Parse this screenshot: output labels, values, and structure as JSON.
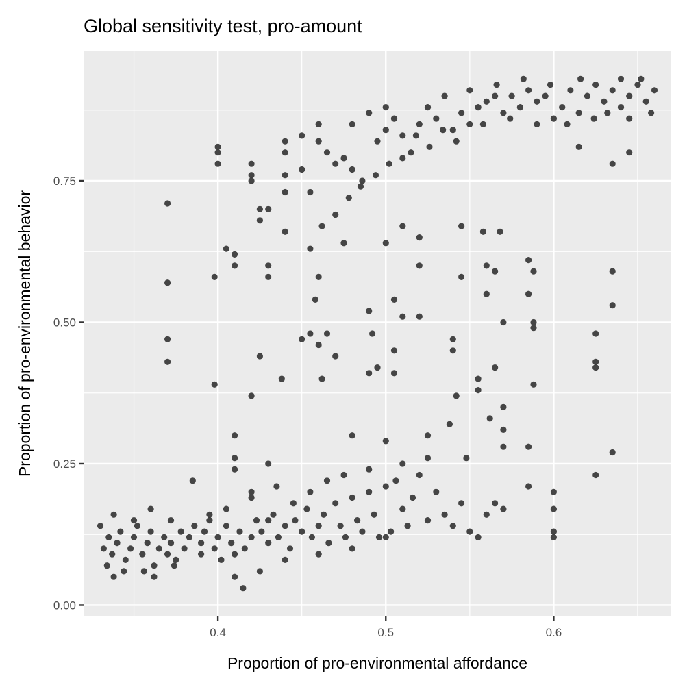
{
  "chart_data": {
    "type": "scatter",
    "title": "Global sensitivity test, pro-amount",
    "xlabel": "Proportion of pro-environmental affordance",
    "ylabel": "Proportion of pro-environmental behavior",
    "xlim": [
      0.32,
      0.67
    ],
    "ylim": [
      -0.02,
      0.98
    ],
    "x_ticks": [
      0.4,
      0.5,
      0.6
    ],
    "x_tick_labels": [
      "0.4",
      "0.5",
      "0.6"
    ],
    "y_ticks": [
      0.0,
      0.25,
      0.5,
      0.75
    ],
    "y_tick_labels": [
      "0.00",
      "0.25",
      "0.50",
      "0.75"
    ],
    "grid": true,
    "legend": "none",
    "point_color": "#333333",
    "points": [
      [
        0.33,
        0.14
      ],
      [
        0.332,
        0.1
      ],
      [
        0.335,
        0.12
      ],
      [
        0.337,
        0.09
      ],
      [
        0.34,
        0.11
      ],
      [
        0.342,
        0.13
      ],
      [
        0.345,
        0.08
      ],
      [
        0.348,
        0.1
      ],
      [
        0.35,
        0.12
      ],
      [
        0.352,
        0.14
      ],
      [
        0.355,
        0.09
      ],
      [
        0.358,
        0.11
      ],
      [
        0.36,
        0.13
      ],
      [
        0.362,
        0.07
      ],
      [
        0.365,
        0.1
      ],
      [
        0.368,
        0.12
      ],
      [
        0.37,
        0.09
      ],
      [
        0.372,
        0.11
      ],
      [
        0.375,
        0.08
      ],
      [
        0.378,
        0.13
      ],
      [
        0.38,
        0.1
      ],
      [
        0.383,
        0.12
      ],
      [
        0.386,
        0.14
      ],
      [
        0.39,
        0.11
      ],
      [
        0.392,
        0.13
      ],
      [
        0.395,
        0.15
      ],
      [
        0.398,
        0.1
      ],
      [
        0.4,
        0.12
      ],
      [
        0.402,
        0.08
      ],
      [
        0.405,
        0.14
      ],
      [
        0.408,
        0.11
      ],
      [
        0.41,
        0.09
      ],
      [
        0.413,
        0.13
      ],
      [
        0.416,
        0.1
      ],
      [
        0.42,
        0.12
      ],
      [
        0.423,
        0.15
      ],
      [
        0.426,
        0.13
      ],
      [
        0.43,
        0.11
      ],
      [
        0.433,
        0.16
      ],
      [
        0.436,
        0.12
      ],
      [
        0.44,
        0.14
      ],
      [
        0.443,
        0.1
      ],
      [
        0.446,
        0.15
      ],
      [
        0.45,
        0.13
      ],
      [
        0.453,
        0.17
      ],
      [
        0.456,
        0.12
      ],
      [
        0.46,
        0.14
      ],
      [
        0.463,
        0.16
      ],
      [
        0.466,
        0.11
      ],
      [
        0.47,
        0.18
      ],
      [
        0.473,
        0.14
      ],
      [
        0.476,
        0.12
      ],
      [
        0.48,
        0.19
      ],
      [
        0.483,
        0.15
      ],
      [
        0.486,
        0.13
      ],
      [
        0.49,
        0.2
      ],
      [
        0.493,
        0.16
      ],
      [
        0.496,
        0.12
      ],
      [
        0.5,
        0.21
      ],
      [
        0.503,
        0.13
      ],
      [
        0.506,
        0.22
      ],
      [
        0.51,
        0.17
      ],
      [
        0.513,
        0.14
      ],
      [
        0.516,
        0.19
      ],
      [
        0.52,
        0.23
      ],
      [
        0.525,
        0.15
      ],
      [
        0.53,
        0.2
      ],
      [
        0.535,
        0.16
      ],
      [
        0.54,
        0.14
      ],
      [
        0.545,
        0.18
      ],
      [
        0.55,
        0.13
      ],
      [
        0.555,
        0.12
      ],
      [
        0.56,
        0.16
      ],
      [
        0.565,
        0.18
      ],
      [
        0.57,
        0.17
      ],
      [
        0.334,
        0.07
      ],
      [
        0.338,
        0.05
      ],
      [
        0.344,
        0.06
      ],
      [
        0.356,
        0.06
      ],
      [
        0.362,
        0.05
      ],
      [
        0.374,
        0.07
      ],
      [
        0.39,
        0.09
      ],
      [
        0.41,
        0.05
      ],
      [
        0.415,
        0.03
      ],
      [
        0.425,
        0.06
      ],
      [
        0.44,
        0.08
      ],
      [
        0.46,
        0.09
      ],
      [
        0.48,
        0.1
      ],
      [
        0.5,
        0.12
      ],
      [
        0.338,
        0.16
      ],
      [
        0.35,
        0.15
      ],
      [
        0.36,
        0.17
      ],
      [
        0.372,
        0.15
      ],
      [
        0.385,
        0.22
      ],
      [
        0.395,
        0.16
      ],
      [
        0.405,
        0.17
      ],
      [
        0.42,
        0.19
      ],
      [
        0.435,
        0.21
      ],
      [
        0.445,
        0.18
      ],
      [
        0.455,
        0.2
      ],
      [
        0.465,
        0.22
      ],
      [
        0.475,
        0.23
      ],
      [
        0.49,
        0.24
      ],
      [
        0.51,
        0.25
      ],
      [
        0.525,
        0.26
      ],
      [
        0.4,
        0.8
      ],
      [
        0.4,
        0.78
      ],
      [
        0.4,
        0.81
      ],
      [
        0.41,
        0.62
      ],
      [
        0.41,
        0.6
      ],
      [
        0.42,
        0.78
      ],
      [
        0.42,
        0.75
      ],
      [
        0.42,
        0.76
      ],
      [
        0.425,
        0.7
      ],
      [
        0.425,
        0.68
      ],
      [
        0.43,
        0.7
      ],
      [
        0.43,
        0.6
      ],
      [
        0.43,
        0.58
      ],
      [
        0.44,
        0.82
      ],
      [
        0.44,
        0.8
      ],
      [
        0.44,
        0.76
      ],
      [
        0.44,
        0.73
      ],
      [
        0.45,
        0.83
      ],
      [
        0.45,
        0.77
      ],
      [
        0.455,
        0.73
      ],
      [
        0.46,
        0.85
      ],
      [
        0.46,
        0.82
      ],
      [
        0.465,
        0.8
      ],
      [
        0.47,
        0.78
      ],
      [
        0.475,
        0.79
      ],
      [
        0.48,
        0.85
      ],
      [
        0.48,
        0.77
      ],
      [
        0.485,
        0.74
      ],
      [
        0.49,
        0.87
      ],
      [
        0.495,
        0.82
      ],
      [
        0.5,
        0.88
      ],
      [
        0.5,
        0.84
      ],
      [
        0.505,
        0.86
      ],
      [
        0.51,
        0.83
      ],
      [
        0.515,
        0.8
      ],
      [
        0.52,
        0.85
      ],
      [
        0.525,
        0.88
      ],
      [
        0.53,
        0.86
      ],
      [
        0.535,
        0.9
      ],
      [
        0.54,
        0.84
      ],
      [
        0.545,
        0.87
      ],
      [
        0.55,
        0.85
      ],
      [
        0.555,
        0.88
      ],
      [
        0.56,
        0.89
      ],
      [
        0.565,
        0.9
      ],
      [
        0.57,
        0.87
      ],
      [
        0.575,
        0.9
      ],
      [
        0.58,
        0.88
      ],
      [
        0.585,
        0.91
      ],
      [
        0.59,
        0.89
      ],
      [
        0.595,
        0.9
      ],
      [
        0.6,
        0.86
      ],
      [
        0.605,
        0.88
      ],
      [
        0.61,
        0.91
      ],
      [
        0.615,
        0.87
      ],
      [
        0.62,
        0.9
      ],
      [
        0.625,
        0.92
      ],
      [
        0.63,
        0.89
      ],
      [
        0.635,
        0.91
      ],
      [
        0.64,
        0.88
      ],
      [
        0.645,
        0.9
      ],
      [
        0.65,
        0.92
      ],
      [
        0.655,
        0.89
      ],
      [
        0.66,
        0.91
      ],
      [
        0.658,
        0.87
      ],
      [
        0.652,
        0.93
      ],
      [
        0.645,
        0.86
      ],
      [
        0.64,
        0.93
      ],
      [
        0.632,
        0.87
      ],
      [
        0.624,
        0.86
      ],
      [
        0.616,
        0.93
      ],
      [
        0.608,
        0.85
      ],
      [
        0.598,
        0.92
      ],
      [
        0.59,
        0.85
      ],
      [
        0.582,
        0.93
      ],
      [
        0.574,
        0.86
      ],
      [
        0.566,
        0.92
      ],
      [
        0.558,
        0.85
      ],
      [
        0.55,
        0.91
      ],
      [
        0.542,
        0.82
      ],
      [
        0.534,
        0.84
      ],
      [
        0.526,
        0.81
      ],
      [
        0.518,
        0.83
      ],
      [
        0.51,
        0.79
      ],
      [
        0.502,
        0.78
      ],
      [
        0.494,
        0.76
      ],
      [
        0.486,
        0.75
      ],
      [
        0.478,
        0.72
      ],
      [
        0.47,
        0.69
      ],
      [
        0.462,
        0.67
      ],
      [
        0.37,
        0.71
      ],
      [
        0.37,
        0.57
      ],
      [
        0.37,
        0.47
      ],
      [
        0.37,
        0.43
      ],
      [
        0.398,
        0.58
      ],
      [
        0.398,
        0.39
      ],
      [
        0.405,
        0.63
      ],
      [
        0.41,
        0.3
      ],
      [
        0.41,
        0.26
      ],
      [
        0.41,
        0.24
      ],
      [
        0.42,
        0.37
      ],
      [
        0.42,
        0.2
      ],
      [
        0.425,
        0.44
      ],
      [
        0.43,
        0.25
      ],
      [
        0.43,
        0.15
      ],
      [
        0.438,
        0.4
      ],
      [
        0.44,
        0.66
      ],
      [
        0.45,
        0.47
      ],
      [
        0.455,
        0.48
      ],
      [
        0.455,
        0.63
      ],
      [
        0.458,
        0.54
      ],
      [
        0.46,
        0.46
      ],
      [
        0.46,
        0.58
      ],
      [
        0.462,
        0.4
      ],
      [
        0.465,
        0.48
      ],
      [
        0.47,
        0.44
      ],
      [
        0.475,
        0.64
      ],
      [
        0.48,
        0.3
      ],
      [
        0.49,
        0.52
      ],
      [
        0.49,
        0.41
      ],
      [
        0.492,
        0.48
      ],
      [
        0.495,
        0.42
      ],
      [
        0.5,
        0.29
      ],
      [
        0.5,
        0.64
      ],
      [
        0.505,
        0.54
      ],
      [
        0.505,
        0.45
      ],
      [
        0.505,
        0.41
      ],
      [
        0.51,
        0.51
      ],
      [
        0.51,
        0.67
      ],
      [
        0.52,
        0.51
      ],
      [
        0.52,
        0.6
      ],
      [
        0.52,
        0.65
      ],
      [
        0.525,
        0.3
      ],
      [
        0.538,
        0.32
      ],
      [
        0.54,
        0.47
      ],
      [
        0.54,
        0.45
      ],
      [
        0.542,
        0.37
      ],
      [
        0.545,
        0.58
      ],
      [
        0.545,
        0.67
      ],
      [
        0.548,
        0.26
      ],
      [
        0.555,
        0.4
      ],
      [
        0.555,
        0.38
      ],
      [
        0.558,
        0.66
      ],
      [
        0.56,
        0.55
      ],
      [
        0.56,
        0.6
      ],
      [
        0.562,
        0.33
      ],
      [
        0.565,
        0.42
      ],
      [
        0.565,
        0.59
      ],
      [
        0.568,
        0.66
      ],
      [
        0.57,
        0.5
      ],
      [
        0.57,
        0.35
      ],
      [
        0.57,
        0.31
      ],
      [
        0.57,
        0.28
      ],
      [
        0.585,
        0.61
      ],
      [
        0.585,
        0.55
      ],
      [
        0.585,
        0.28
      ],
      [
        0.585,
        0.21
      ],
      [
        0.588,
        0.59
      ],
      [
        0.588,
        0.5
      ],
      [
        0.588,
        0.49
      ],
      [
        0.588,
        0.39
      ],
      [
        0.6,
        0.2
      ],
      [
        0.6,
        0.17
      ],
      [
        0.6,
        0.13
      ],
      [
        0.6,
        0.12
      ],
      [
        0.625,
        0.48
      ],
      [
        0.625,
        0.43
      ],
      [
        0.625,
        0.42
      ],
      [
        0.625,
        0.23
      ],
      [
        0.635,
        0.78
      ],
      [
        0.635,
        0.59
      ],
      [
        0.635,
        0.53
      ],
      [
        0.635,
        0.27
      ],
      [
        0.645,
        0.8
      ],
      [
        0.615,
        0.81
      ]
    ]
  }
}
